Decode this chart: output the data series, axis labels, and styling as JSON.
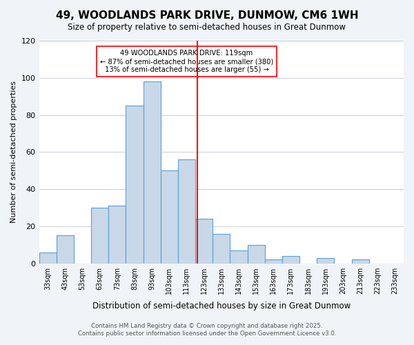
{
  "title": "49, WOODLANDS PARK DRIVE, DUNMOW, CM6 1WH",
  "subtitle": "Size of property relative to semi-detached houses in Great Dunmow",
  "xlabel": "Distribution of semi-detached houses by size in Great Dunmow",
  "ylabel": "Number of semi-detached properties",
  "bar_values": [
    6,
    15,
    0,
    30,
    31,
    85,
    98,
    50,
    56,
    24,
    16,
    7,
    10,
    2,
    4,
    0,
    3,
    0,
    2,
    0,
    0
  ],
  "bar_labels": [
    "33sqm",
    "43sqm",
    "53sqm",
    "63sqm",
    "73sqm",
    "83sqm",
    "93sqm",
    "103sqm",
    "113sqm",
    "123sqm",
    "133sqm",
    "143sqm",
    "153sqm",
    "163sqm",
    "173sqm",
    "183sqm",
    "193sqm",
    "203sqm",
    "213sqm",
    "223sqm",
    "233sqm"
  ],
  "bin_edges": [
    28,
    38,
    48,
    58,
    68,
    78,
    88,
    98,
    108,
    118,
    128,
    138,
    148,
    158,
    168,
    178,
    188,
    198,
    208,
    218,
    228,
    238
  ],
  "bar_color": "#c8d8e8",
  "bar_edge_color": "#5a9fd4",
  "property_line_x": 119,
  "property_line_color": "red",
  "annotation_text": "49 WOODLANDS PARK DRIVE: 119sqm\n← 87% of semi-detached houses are smaller (380)\n13% of semi-detached houses are larger (55) →",
  "annotation_box_color": "white",
  "annotation_box_edge_color": "red",
  "ylim": [
    0,
    120
  ],
  "yticks": [
    0,
    20,
    40,
    60,
    80,
    100,
    120
  ],
  "footer_line1": "Contains HM Land Registry data © Crown copyright and database right 2025.",
  "footer_line2": "Contains public sector information licensed under the Open Government Licence v3.0.",
  "bg_color": "#f0f4f8",
  "plot_bg_color": "#ffffff"
}
